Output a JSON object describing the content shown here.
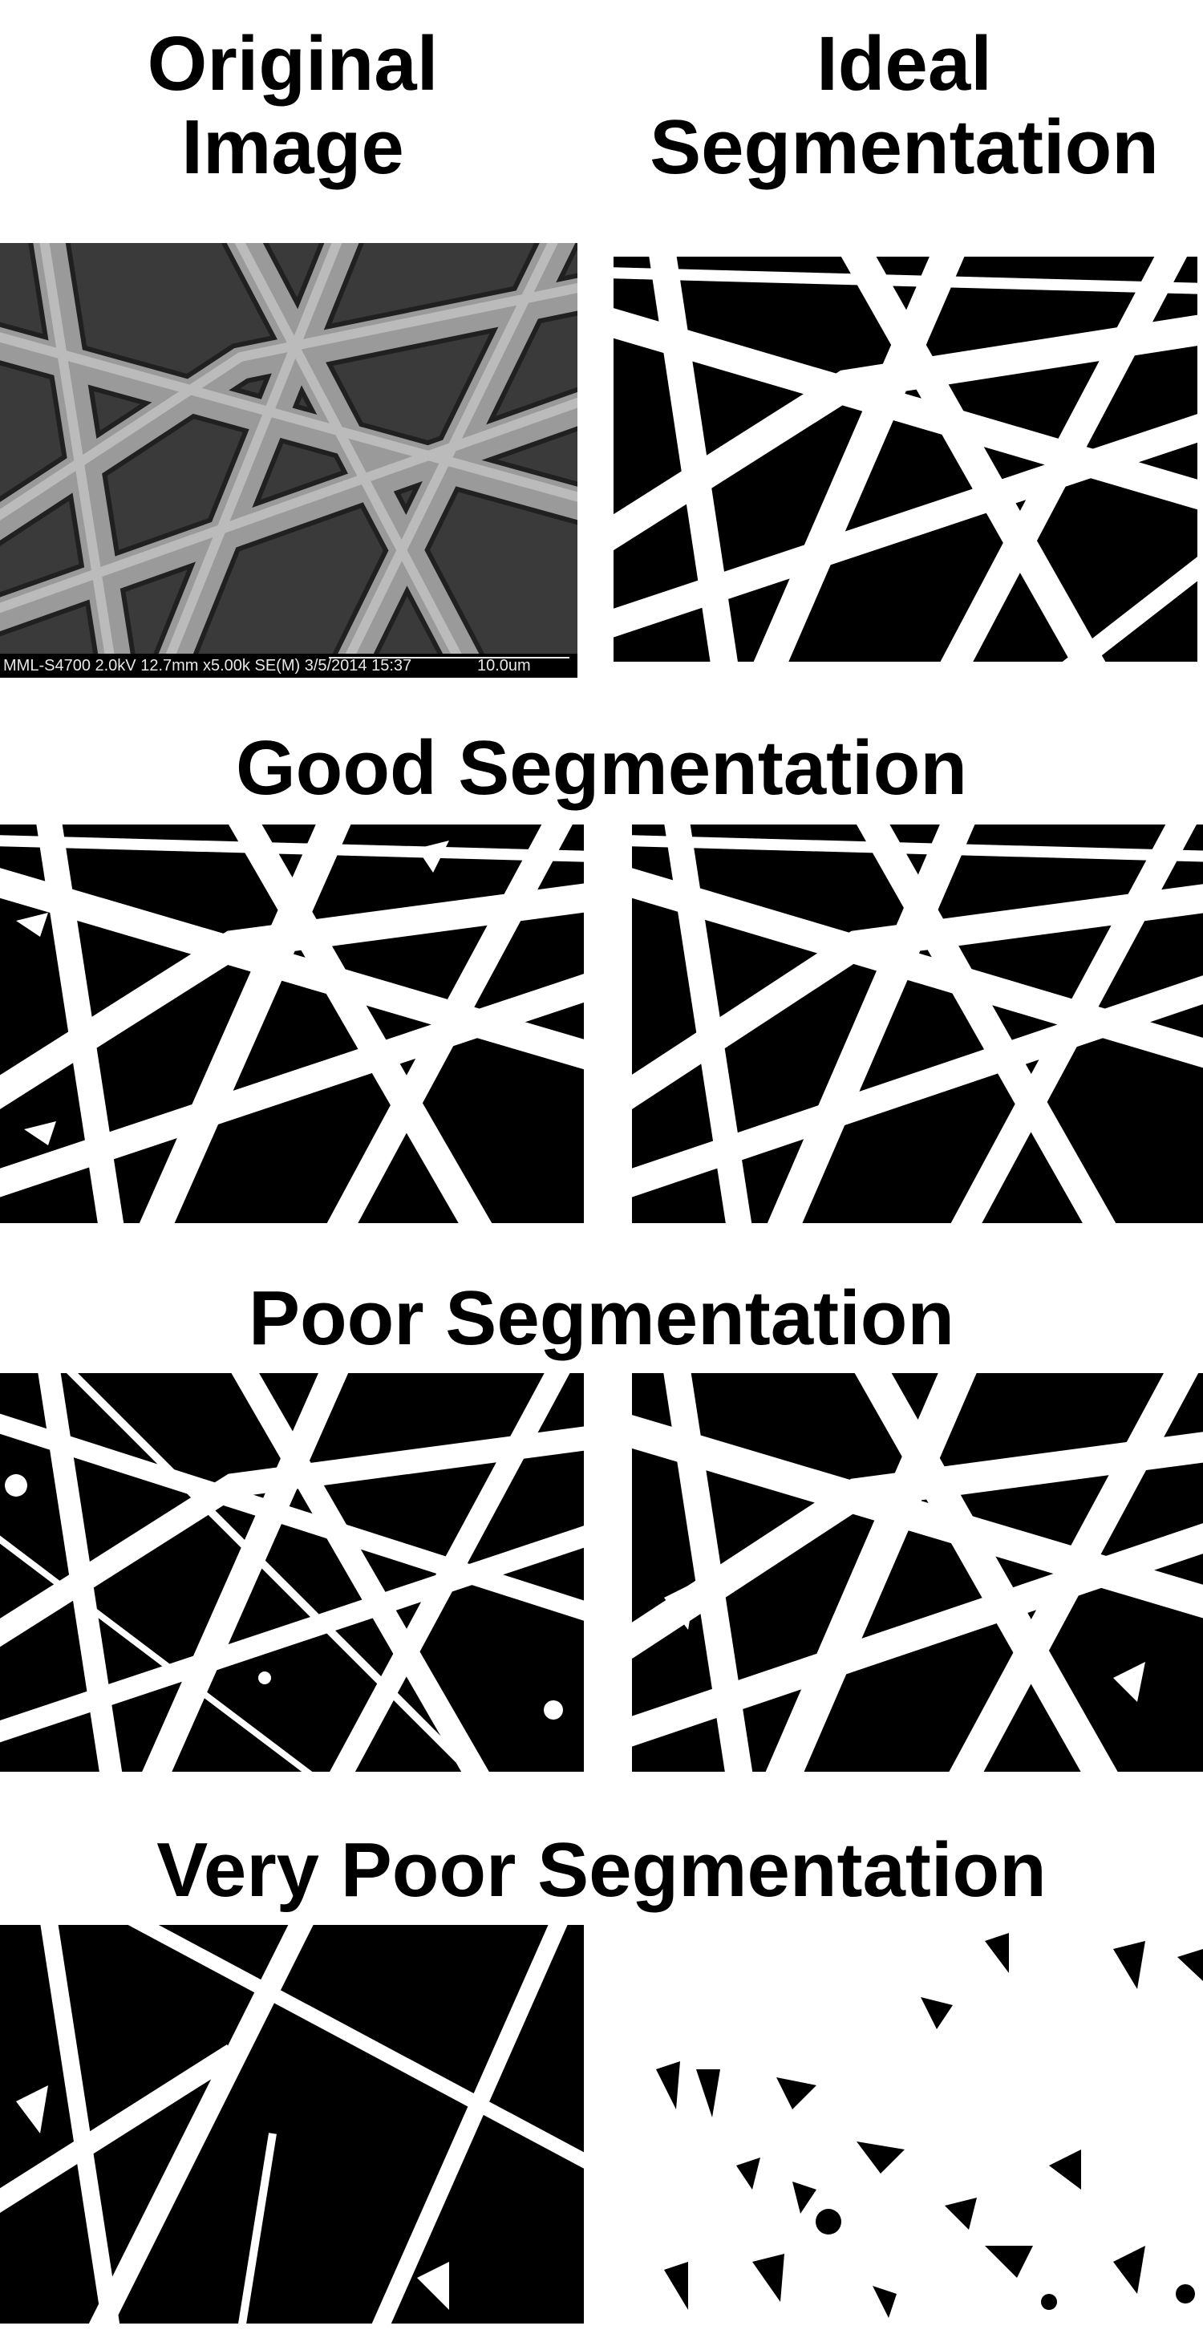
{
  "titles": {
    "original": "Original\nImage",
    "ideal": "Ideal\nSegmentation",
    "good": "Good Segmentation",
    "poor": "Poor Segmentation",
    "very_poor": "Very Poor Segmentation"
  },
  "sem_caption": {
    "info": "MML-S4700 2.0kV 12.7mm x5.00k SE(M) 3/5/2014 15:37",
    "scale": "10.0um"
  },
  "colors": {
    "fiber": "#ffffff",
    "background": "#000000",
    "sem_fiber": "#9a9a9a"
  }
}
